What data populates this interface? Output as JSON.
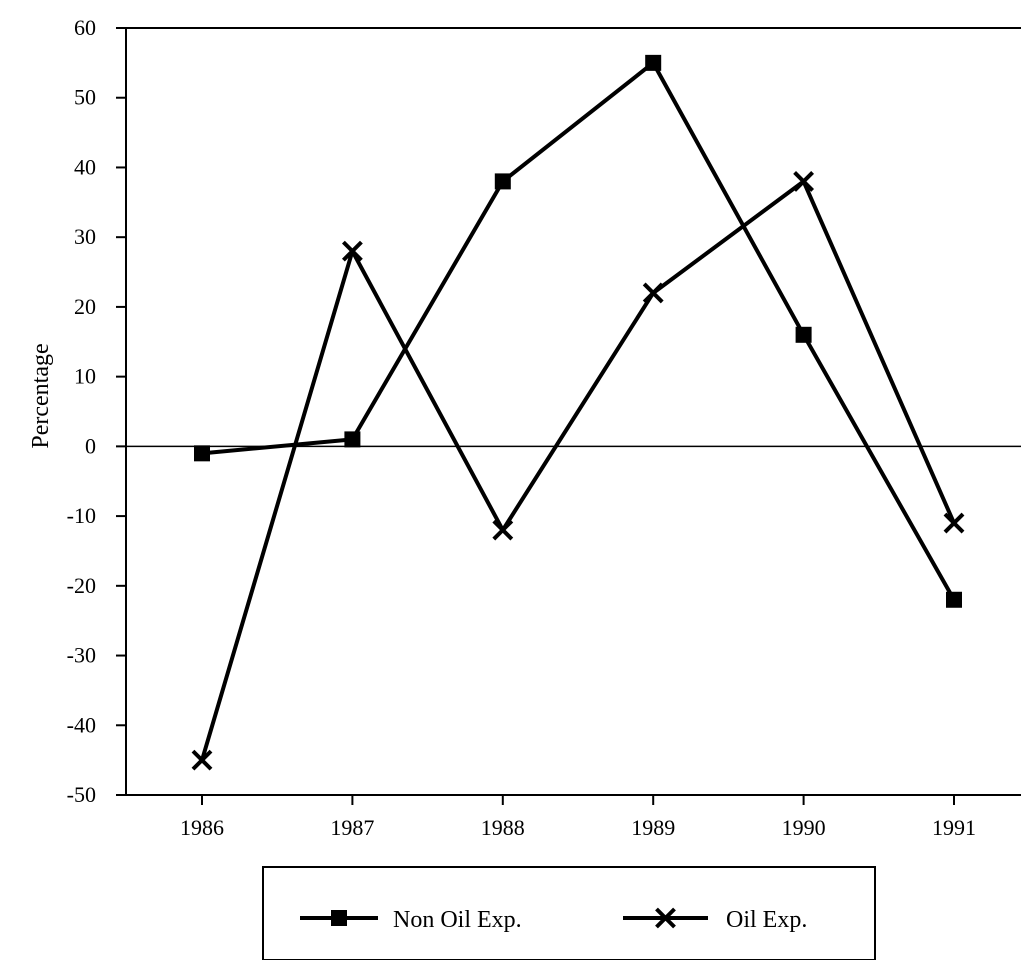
{
  "chart_data": {
    "type": "line",
    "title": "",
    "xlabel": "",
    "ylabel": "Percentage",
    "categories": [
      "1986",
      "1987",
      "1988",
      "1989",
      "1990",
      "1991"
    ],
    "ylim": [
      -50,
      60
    ],
    "yticks": [
      60,
      50,
      40,
      30,
      20,
      10,
      0,
      -10,
      -20,
      -30,
      -40,
      -50
    ],
    "grid": false,
    "zero_line": true,
    "legend_position": "bottom",
    "series": [
      {
        "name": "Non Oil Exp.",
        "marker": "square",
        "values": [
          -1,
          1,
          38,
          55,
          16,
          -22
        ]
      },
      {
        "name": "Oil Exp.",
        "marker": "x",
        "values": [
          -45,
          28,
          -12,
          22,
          38,
          -11
        ]
      }
    ],
    "colors": {
      "line": "#000000",
      "background": "#ffffff"
    }
  }
}
